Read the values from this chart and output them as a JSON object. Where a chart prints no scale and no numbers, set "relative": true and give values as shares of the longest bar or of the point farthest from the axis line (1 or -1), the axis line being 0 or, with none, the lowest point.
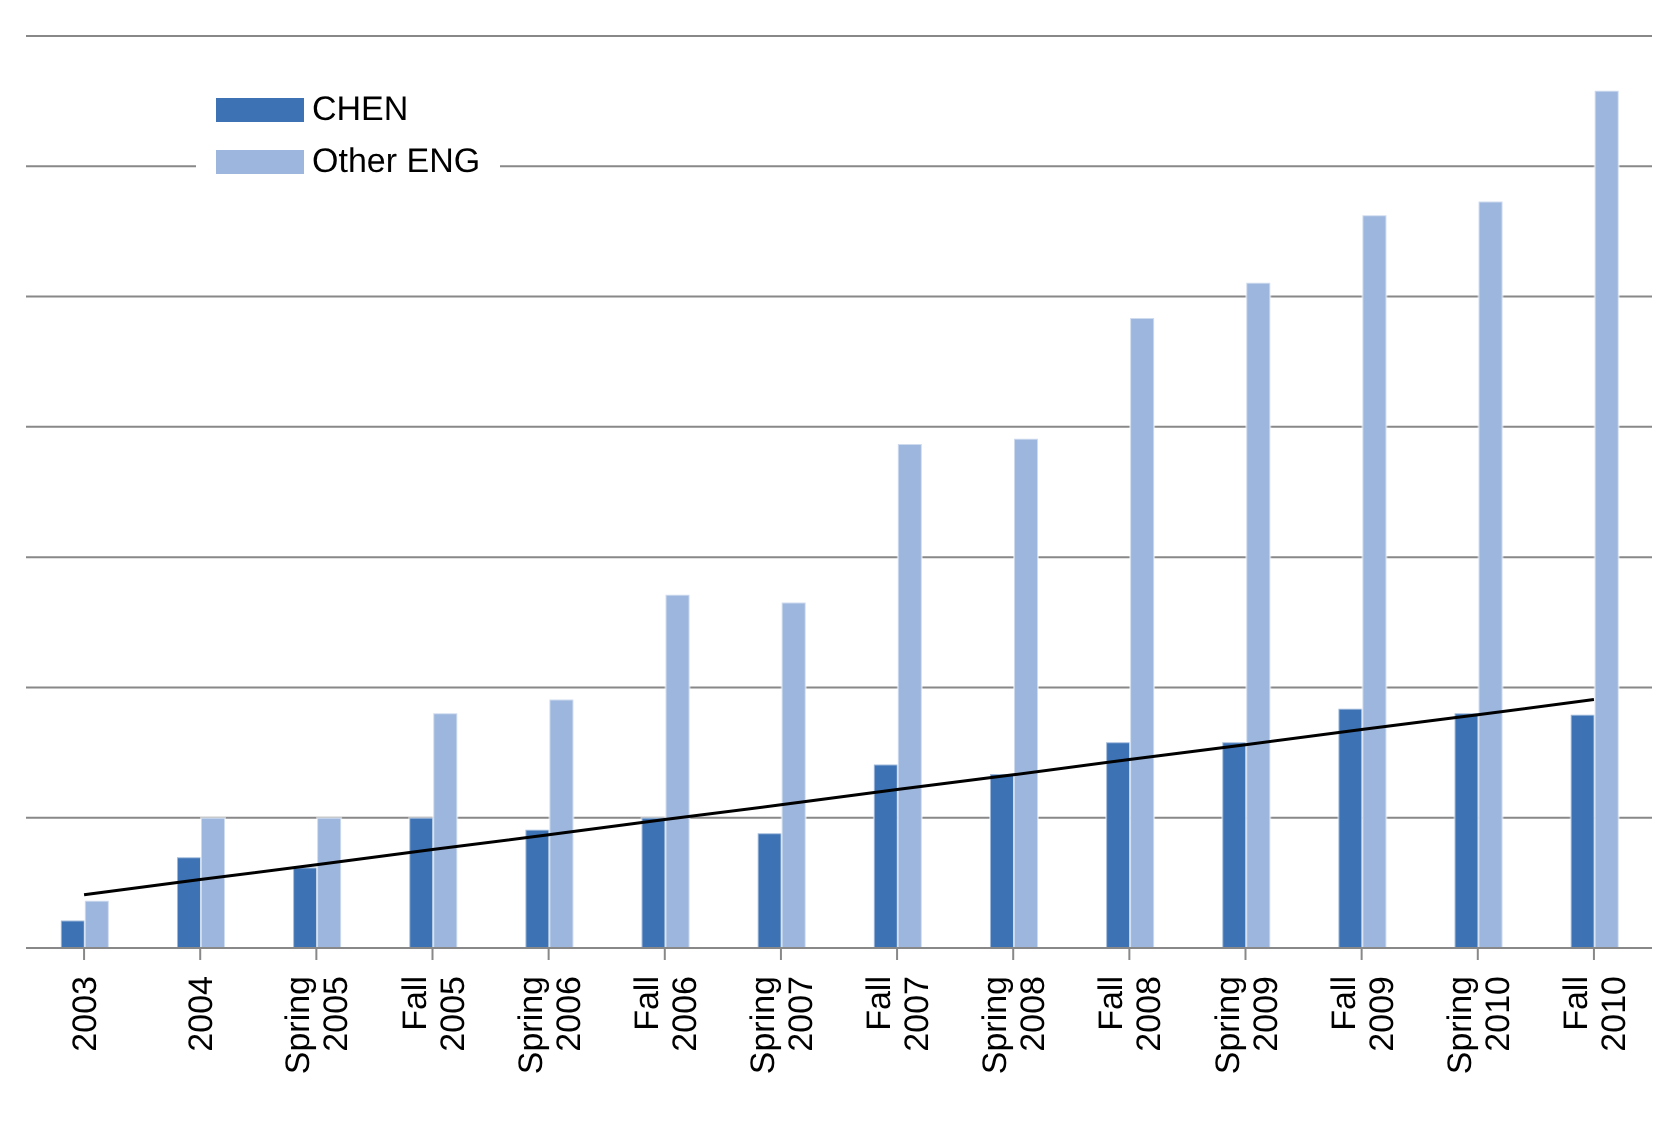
{
  "chart_data": {
    "type": "bar",
    "relative": true,
    "grid": "y",
    "legend": "top left",
    "categories": [
      "2003",
      "2004",
      "Spring 2005",
      "Fall 2005",
      "Spring 2006",
      "Fall 2006",
      "Spring 2007",
      "Fall 2007",
      "Spring 2008",
      "Fall 2008",
      "Spring 2009",
      "Fall 2009",
      "Spring 2010",
      "Fall 2010"
    ],
    "series": [
      {
        "name": "CHEN",
        "color": "#3d72b4",
        "values": [
          0.032,
          0.106,
          0.094,
          0.152,
          0.138,
          0.152,
          0.134,
          0.214,
          0.203,
          0.24,
          0.24,
          0.279,
          0.274,
          0.272
        ]
      },
      {
        "name": "Other ENG",
        "color": "#9db6dd",
        "values": [
          0.055,
          0.152,
          0.152,
          0.274,
          0.29,
          0.412,
          0.403,
          0.588,
          0.594,
          0.735,
          0.776,
          0.855,
          0.871,
          1
        ]
      },
      {
        "type": "line",
        "color": "#000000",
        "values": [
          0.062,
          0.08,
          0.097,
          0.115,
          0.132,
          0.15,
          0.167,
          0.185,
          0.202,
          0.22,
          0.237,
          0.255,
          0.272,
          0.29
        ]
      }
    ]
  }
}
